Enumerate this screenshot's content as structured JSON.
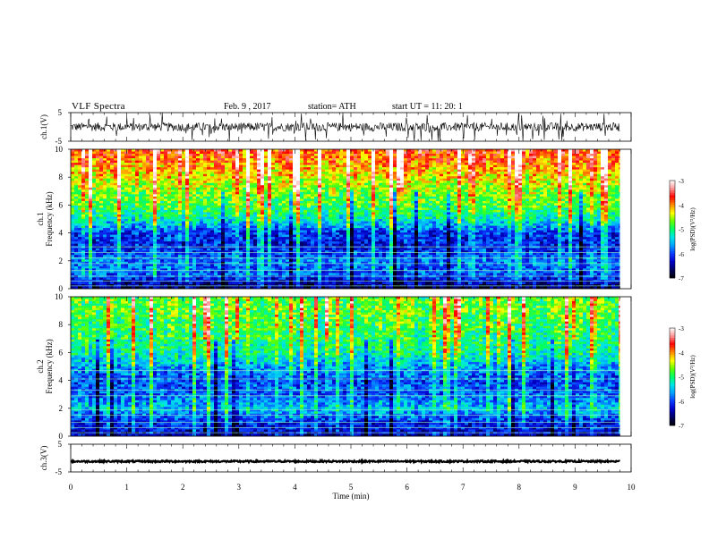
{
  "header": {
    "title": "VLF  Spectra",
    "date": "Feb. 9  , 2017",
    "station": "station= ATH",
    "start_ut": "start  UT  =    11: 20: 1"
  },
  "colors": {
    "spectrogram_colormap": [
      "#000000",
      "#000060",
      "#0000c8",
      "#0a3cff",
      "#00a0ff",
      "#00e6e6",
      "#00ff64",
      "#64ff00",
      "#ffff00",
      "#ff8c00",
      "#ff0000",
      "#ff9696",
      "#ffffff"
    ],
    "trace": "#000000"
  },
  "chart_data": [
    {
      "type": "line",
      "name": "ch1-waveform-panel",
      "ylabel": "ch.1(V)",
      "ylim": [
        -5,
        5
      ],
      "yticks": [
        "5",
        "-5"
      ],
      "xlim": [
        0,
        10
      ],
      "series": [
        {
          "approx_level_V": 0.0,
          "typical_range_V": [
            -1.5,
            1.5
          ],
          "impulsive_spikes": true
        }
      ]
    },
    {
      "type": "heatmap",
      "name": "ch1-spectrogram",
      "ylabel": "ch.1\nFrequency  (kHz)",
      "ylim": [
        0,
        10
      ],
      "yticks": [
        "0",
        "2",
        "4",
        "6",
        "8",
        "10"
      ],
      "xlim": [
        0,
        10
      ],
      "data_extent_min": 9.8,
      "colorbar": {
        "label": "log(PSD)(V²/Hz)",
        "range": [
          -7,
          -3
        ],
        "ticks": [
          "-3",
          "-4",
          "-5",
          "-6",
          "-7"
        ]
      },
      "frequency_profile_logpsd": [
        {
          "freq_khz": 0.3,
          "log_psd": -6.6
        },
        {
          "freq_khz": 1.0,
          "log_psd": -6.0
        },
        {
          "freq_khz": 2.0,
          "log_psd": -5.9
        },
        {
          "freq_khz": 3.0,
          "log_psd": -6.3
        },
        {
          "freq_khz": 4.0,
          "log_psd": -6.2
        },
        {
          "freq_khz": 5.0,
          "log_psd": -5.4
        },
        {
          "freq_khz": 6.0,
          "log_psd": -5.0
        },
        {
          "freq_khz": 7.0,
          "log_psd": -4.8
        },
        {
          "freq_khz": 8.0,
          "log_psd": -4.5
        },
        {
          "freq_khz": 9.0,
          "log_psd": -4.2
        },
        {
          "freq_khz": 10.0,
          "log_psd": -4.0
        }
      ]
    },
    {
      "type": "heatmap",
      "name": "ch2-spectrogram",
      "ylabel": "ch.2\nFrequency  (kHz)",
      "ylim": [
        0,
        10
      ],
      "yticks": [
        "0",
        "2",
        "4",
        "6",
        "8",
        "10"
      ],
      "xlim": [
        0,
        10
      ],
      "data_extent_min": 9.8,
      "colorbar": {
        "label": "log(PSD)(V²/Hz)",
        "range": [
          -7,
          -3
        ],
        "ticks": [
          "-3",
          "-4",
          "-5",
          "-6",
          "-7"
        ]
      },
      "frequency_profile_logpsd": [
        {
          "freq_khz": 0.3,
          "log_psd": -6.4
        },
        {
          "freq_khz": 1.0,
          "log_psd": -6.2
        },
        {
          "freq_khz": 2.0,
          "log_psd": -5.6
        },
        {
          "freq_khz": 3.0,
          "log_psd": -6.0
        },
        {
          "freq_khz": 4.0,
          "log_psd": -6.1
        },
        {
          "freq_khz": 5.0,
          "log_psd": -5.8
        },
        {
          "freq_khz": 6.0,
          "log_psd": -5.3
        },
        {
          "freq_khz": 7.0,
          "log_psd": -5.2
        },
        {
          "freq_khz": 8.0,
          "log_psd": -5.1
        },
        {
          "freq_khz": 9.0,
          "log_psd": -5.0
        },
        {
          "freq_khz": 10.0,
          "log_psd": -5.0
        }
      ]
    },
    {
      "type": "line",
      "name": "ch3-waveform-panel",
      "ylabel": "ch.3(V)",
      "ylim": [
        -5,
        5
      ],
      "yticks": [
        "5",
        "-5"
      ],
      "xlim": [
        0,
        10
      ],
      "series": [
        {
          "approx_level_V": -1.2,
          "typical_range_V": [
            -1.5,
            -0.9
          ],
          "impulsive_spikes": false
        }
      ]
    }
  ],
  "xaxis": {
    "label": "Time  (min)",
    "range": [
      0,
      10
    ],
    "ticks": [
      "0",
      "1",
      "2",
      "3",
      "4",
      "5",
      "6",
      "7",
      "8",
      "9",
      "10"
    ]
  }
}
